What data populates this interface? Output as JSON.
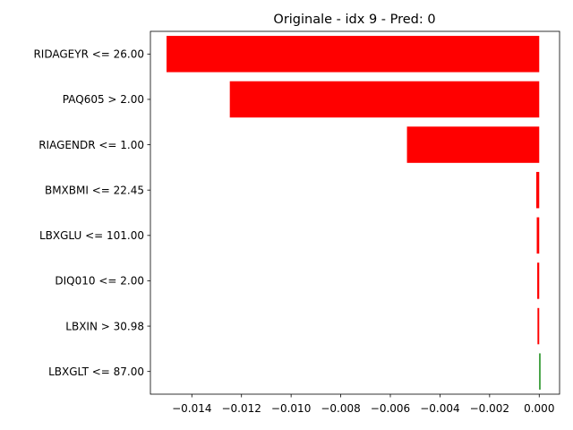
{
  "chart_data": {
    "type": "bar",
    "orientation": "horizontal",
    "title": "Originale - idx 9 - Pred: 0",
    "xlabel": "",
    "ylabel": "",
    "categories": [
      "RIDAGEYR <= 26.00",
      "PAQ605 > 2.00",
      "RIAGENDR <= 1.00",
      "BMXBMI <= 22.45",
      "LBXGLU <= 101.00",
      "DIQ010 <= 2.00",
      "LBXIN > 30.98",
      "LBXGLT <= 87.00"
    ],
    "values": [
      -0.01502,
      -0.01247,
      -0.00533,
      -0.00012,
      -0.0001,
      -8e-05,
      -7e-05,
      5e-05
    ],
    "colors": [
      "#ff0000",
      "#ff0000",
      "#ff0000",
      "#ff0000",
      "#ff0000",
      "#ff0000",
      "#ff0000",
      "#008000"
    ],
    "xlim": [
      -0.01567,
      0.00082
    ],
    "xticks": [
      -0.014,
      -0.012,
      -0.01,
      -0.008,
      -0.006,
      -0.004,
      -0.002,
      0.0
    ],
    "xtick_labels": [
      "−0.014",
      "−0.012",
      "−0.010",
      "−0.008",
      "−0.006",
      "−0.004",
      "−0.002",
      "0.000"
    ],
    "grid": false,
    "legend": "none"
  }
}
